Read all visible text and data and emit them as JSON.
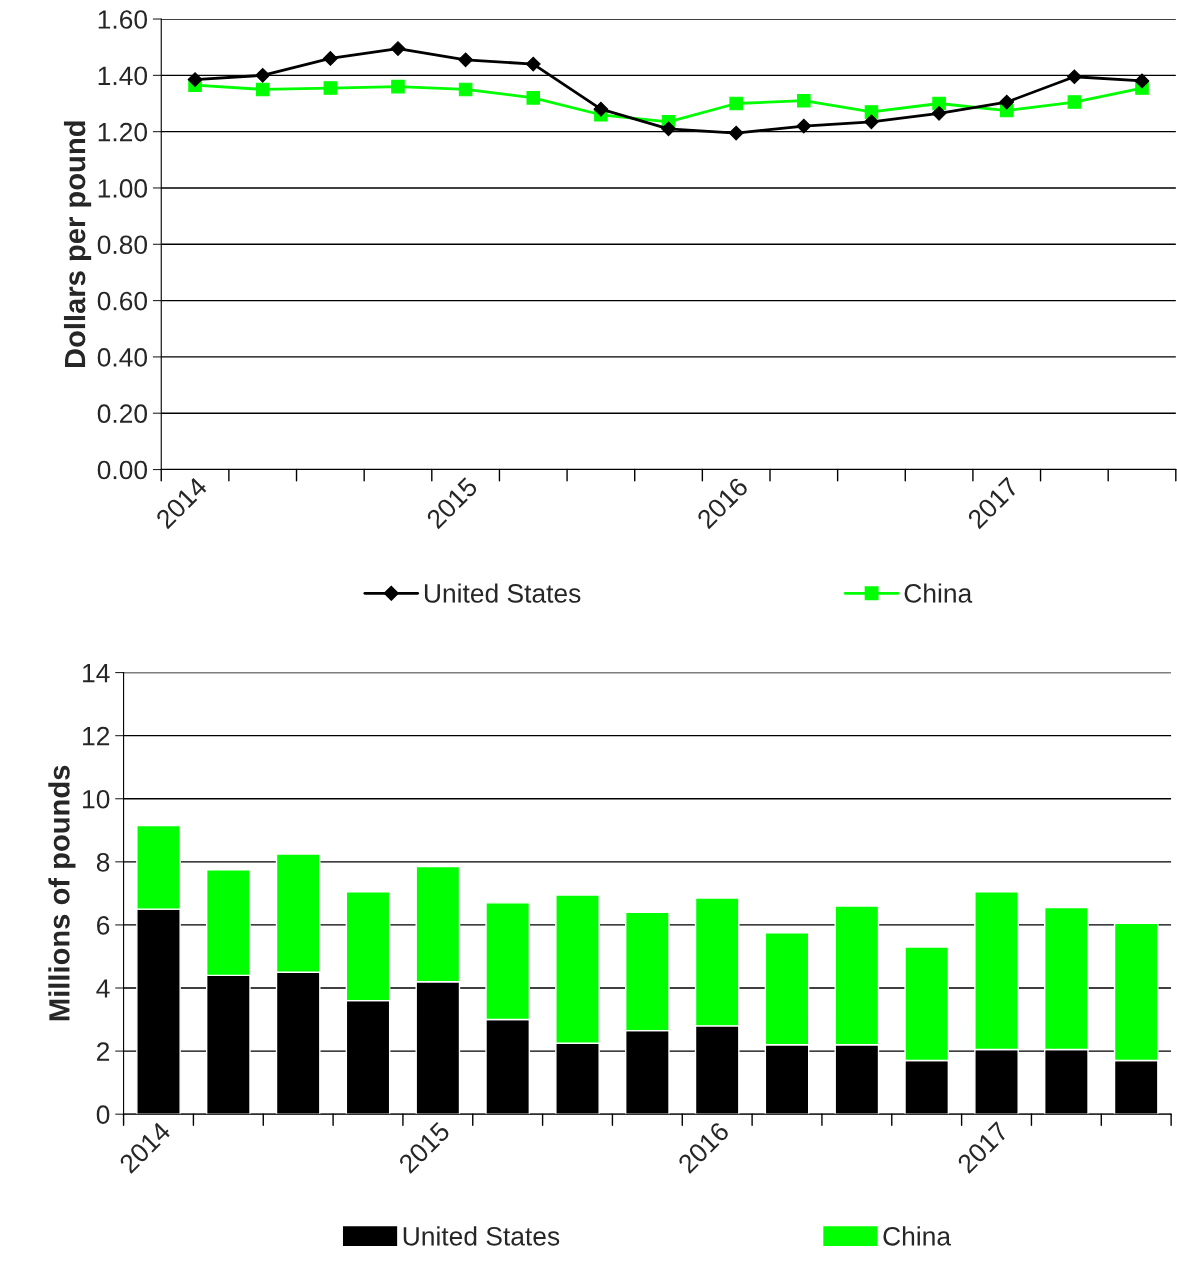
{
  "chart_data": [
    {
      "type": "line",
      "ylabel": "Dollars per pound",
      "categories": [
        "2014",
        null,
        null,
        null,
        "2015",
        null,
        null,
        null,
        "2016",
        null,
        null,
        null,
        "2017",
        null,
        null
      ],
      "ylim": [
        0,
        1.6
      ],
      "yticks": [
        {
          "value": 0,
          "label": "0.00"
        },
        {
          "value": 0.2,
          "label": "0.20"
        },
        {
          "value": 0.4,
          "label": "0.40"
        },
        {
          "value": 0.6,
          "label": "0.60"
        },
        {
          "value": 0.8,
          "label": "0.80"
        },
        {
          "value": 1.0,
          "label": "1.00"
        },
        {
          "value": 1.2,
          "label": "1.20"
        },
        {
          "value": 1.4,
          "label": "1.40"
        },
        {
          "value": 1.6,
          "label": "1.60"
        }
      ],
      "grid": "y",
      "legend": "bottom",
      "series": [
        {
          "name": "United States",
          "color": "#000000",
          "marker": "diamond",
          "values": [
            1.385,
            1.4,
            1.46,
            1.495,
            1.455,
            1.44,
            1.28,
            1.21,
            1.195,
            1.22,
            1.235,
            1.265,
            1.305,
            1.395,
            1.38
          ]
        },
        {
          "name": "China",
          "color": "#00ff00",
          "marker": "square",
          "values": [
            1.365,
            1.35,
            1.355,
            1.36,
            1.35,
            1.32,
            1.26,
            1.235,
            1.3,
            1.31,
            1.27,
            1.3,
            1.275,
            1.305,
            1.355
          ]
        }
      ]
    },
    {
      "type": "bar",
      "stacked": true,
      "ylabel": "Millions of pounds",
      "categories": [
        "2014",
        null,
        null,
        null,
        "2015",
        null,
        null,
        null,
        "2016",
        null,
        null,
        null,
        "2017",
        null,
        null
      ],
      "ylim": [
        0,
        14
      ],
      "yticks": [
        0,
        2,
        4,
        6,
        8,
        10,
        12,
        14
      ],
      "grid": "y",
      "legend": "bottom",
      "series": [
        {
          "name": "United States",
          "color": "#000000",
          "values": [
            6.5,
            4.4,
            4.5,
            3.6,
            4.2,
            3.0,
            2.25,
            2.65,
            2.8,
            2.2,
            2.2,
            1.7,
            2.05,
            2.05,
            1.7
          ]
        },
        {
          "name": "China",
          "color": "#00ff00",
          "values": [
            2.65,
            3.35,
            3.75,
            3.45,
            3.65,
            3.7,
            4.7,
            3.75,
            4.05,
            3.55,
            4.4,
            3.6,
            5.0,
            4.5,
            4.35
          ]
        }
      ]
    }
  ]
}
